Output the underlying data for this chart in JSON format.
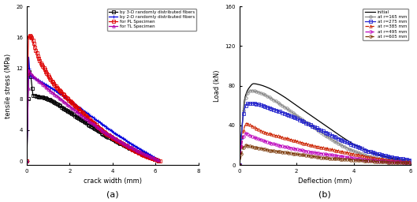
{
  "panel_a": {
    "title": "(a)",
    "xlabel": "crack width (mm)",
    "ylabel": "tensile stress (MPa)",
    "xlim": [
      0,
      8
    ],
    "ylim": [
      -0.5,
      20
    ],
    "yticks": [
      0,
      4,
      8,
      12,
      16,
      20
    ],
    "xticks": [
      0,
      2,
      4,
      6,
      8
    ]
  },
  "panel_b": {
    "title": "(b)",
    "xlabel": "Deflection (mm)",
    "ylabel": "Load (kN)",
    "xlim": [
      0,
      6
    ],
    "ylim": [
      0,
      160
    ],
    "yticks": [
      0,
      40,
      80,
      120,
      160
    ],
    "xticks": [
      0,
      2,
      4,
      6
    ]
  },
  "bg_color": "#ffffff",
  "figure_bg": "#ffffff"
}
